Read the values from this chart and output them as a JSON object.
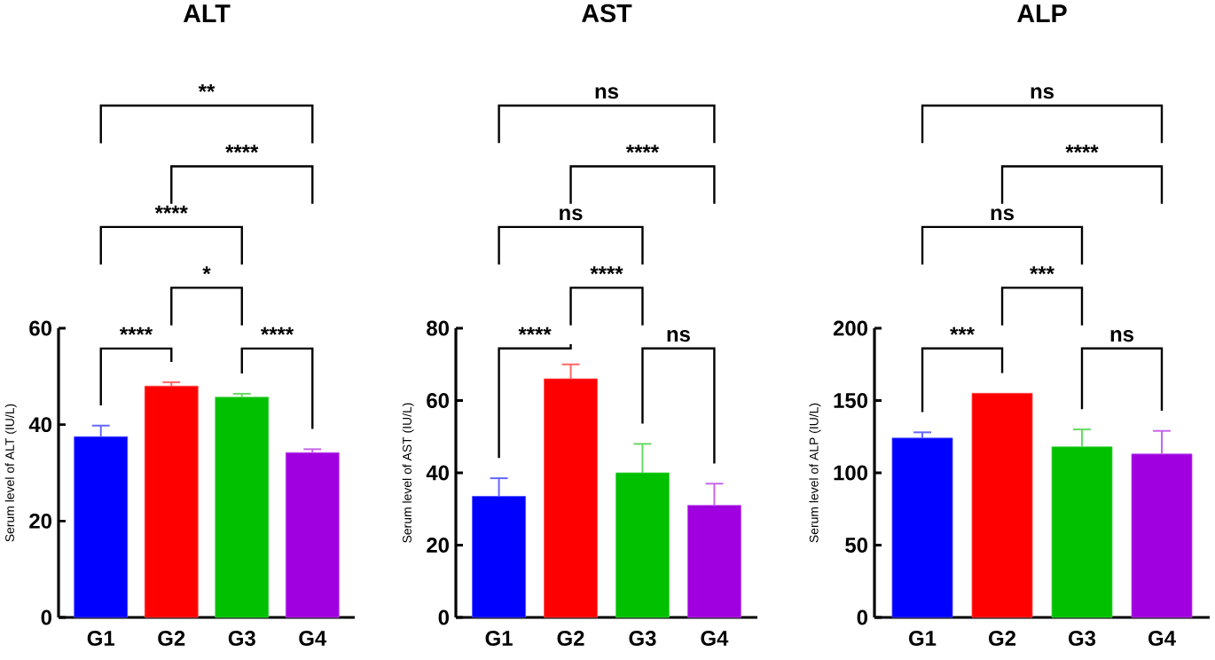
{
  "chart_data": [
    {
      "type": "bar",
      "title": "ALT",
      "ylabel": "Serum level of ALT (IU/L)",
      "categories": [
        "G1",
        "G2",
        "G3",
        "G4"
      ],
      "values": [
        37.5,
        48,
        45.7,
        34.2
      ],
      "errors": [
        2.3,
        0.8,
        0.7,
        0.7
      ],
      "colors": [
        "#0000ff",
        "#ff0000",
        "#00c000",
        "#a000e0"
      ],
      "ylim": [
        0,
        60
      ],
      "yticks": [
        0,
        20,
        40,
        60
      ],
      "grid": false,
      "annotations": [
        "****",
        "****",
        "*",
        "****",
        "****",
        "**"
      ]
    },
    {
      "type": "bar",
      "title": "AST",
      "ylabel": "Serum level of AST (IU/L)",
      "categories": [
        "G1",
        "G2",
        "G3",
        "G4"
      ],
      "values": [
        33.5,
        66,
        40,
        31
      ],
      "errors": [
        5,
        4,
        8,
        6
      ],
      "colors": [
        "#0000ff",
        "#ff0000",
        "#00c000",
        "#a000e0"
      ],
      "ylim": [
        0,
        80
      ],
      "yticks": [
        0,
        20,
        40,
        60,
        80
      ],
      "grid": false,
      "annotations": [
        "****",
        "ns",
        "****",
        "ns",
        "****",
        "ns"
      ]
    },
    {
      "type": "bar",
      "title": "ALP",
      "ylabel": "Serum level of ALP (IU/L)",
      "categories": [
        "G1",
        "G2",
        "G3",
        "G4"
      ],
      "values": [
        124,
        155,
        118,
        113
      ],
      "errors": [
        4,
        null,
        12,
        16
      ],
      "colors": [
        "#0000ff",
        "#ff0000",
        "#00c000",
        "#a000e0"
      ],
      "ylim": [
        0,
        200
      ],
      "yticks": [
        0,
        50,
        100,
        150,
        200
      ],
      "grid": false,
      "annotations": [
        "***",
        "ns",
        "***",
        "ns",
        "****",
        "ns"
      ]
    }
  ]
}
